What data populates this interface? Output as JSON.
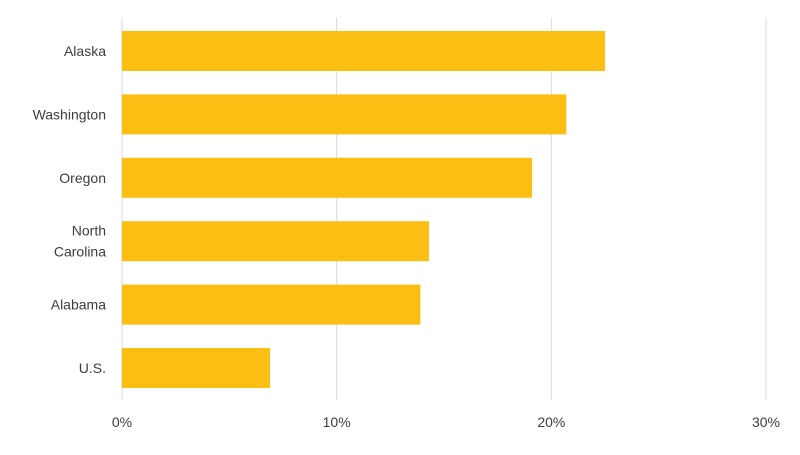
{
  "chart_data": {
    "type": "bar",
    "orientation": "horizontal",
    "categories": [
      [
        "Alaska"
      ],
      [
        "Washington"
      ],
      [
        "Oregon"
      ],
      [
        "North",
        "Carolina"
      ],
      [
        "Alabama"
      ],
      [
        "U.S."
      ]
    ],
    "values": [
      22.5,
      20.7,
      19.1,
      14.3,
      13.9,
      6.9
    ],
    "xlim": [
      0,
      30
    ],
    "x_ticks": [
      0,
      10,
      20,
      30
    ],
    "x_tick_labels": [
      "0%",
      "10%",
      "20%",
      "30%"
    ],
    "title": "",
    "xlabel": "",
    "ylabel": "",
    "grid": "vertical",
    "legend": "none",
    "bar_color": "#FBBF14",
    "grid_color": "#d9d9d9",
    "text_color": "#3d3d3d"
  }
}
